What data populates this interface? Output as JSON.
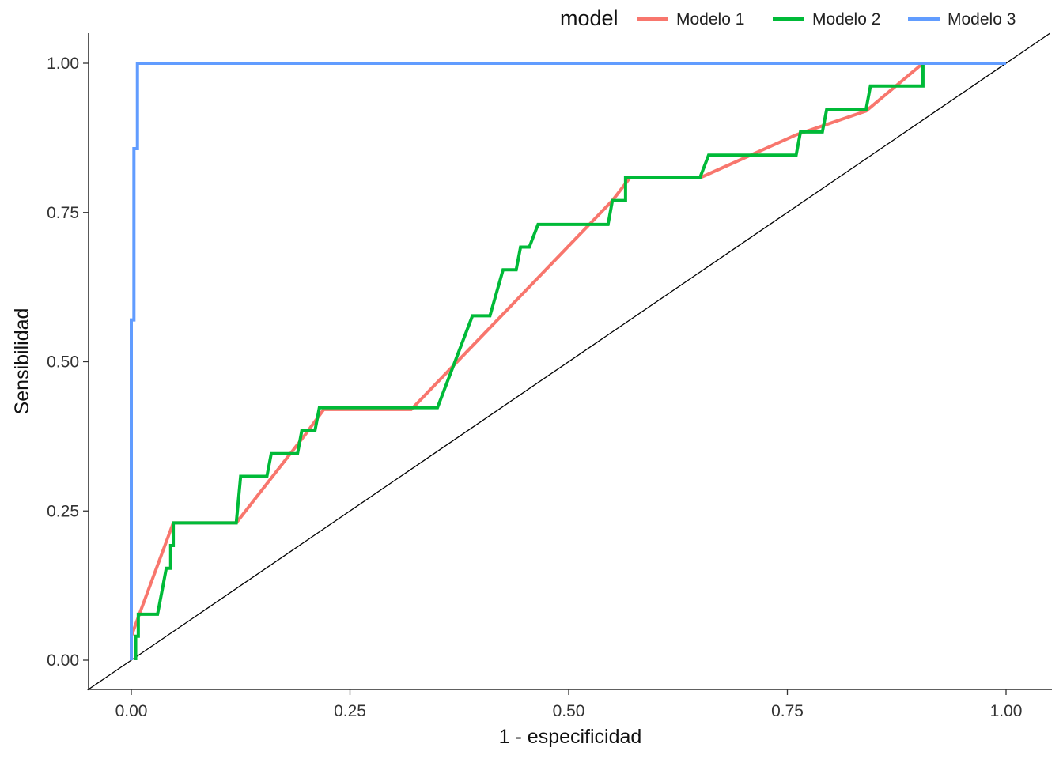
{
  "chart_data": {
    "type": "line",
    "title": "",
    "xlabel": "1 - especificidad",
    "ylabel": "Sensibilidad",
    "xlim": [
      -0.05,
      1.05
    ],
    "ylim": [
      -0.05,
      1.05
    ],
    "x_ticks": [
      0.0,
      0.25,
      0.5,
      0.75,
      1.0
    ],
    "x_tick_labels": [
      "0.00",
      "0.25",
      "0.50",
      "0.75",
      "1.00"
    ],
    "y_ticks": [
      0.0,
      0.25,
      0.5,
      0.75,
      1.0
    ],
    "y_tick_labels": [
      "0.00",
      "0.25",
      "0.50",
      "0.75",
      "1.00"
    ],
    "grid": false,
    "legend": {
      "title": "model",
      "position": "top-right"
    },
    "reference_line": {
      "x": [
        -0.05,
        1.05
      ],
      "y": [
        -0.05,
        1.05
      ],
      "color": "#000000"
    },
    "series": [
      {
        "name": "Modelo 1",
        "color": "#F8766D",
        "x": [
          0.0,
          0.0,
          0.01,
          0.048,
          0.12,
          0.2,
          0.22,
          0.32,
          0.55,
          0.57,
          0.65,
          0.76,
          0.84,
          0.905,
          0.905
        ],
        "y": [
          0.0,
          0.04,
          0.08,
          0.23,
          0.23,
          0.38,
          0.42,
          0.42,
          0.77,
          0.808,
          0.808,
          0.88,
          0.92,
          1.0,
          1.0
        ]
      },
      {
        "name": "Modelo 2",
        "color": "#00BA38",
        "x": [
          0.005,
          0.005,
          0.008,
          0.008,
          0.03,
          0.035,
          0.04,
          0.045,
          0.045,
          0.048,
          0.048,
          0.12,
          0.125,
          0.155,
          0.16,
          0.19,
          0.195,
          0.21,
          0.215,
          0.35,
          0.39,
          0.41,
          0.425,
          0.44,
          0.445,
          0.455,
          0.465,
          0.545,
          0.55,
          0.565,
          0.565,
          0.65,
          0.66,
          0.76,
          0.765,
          0.79,
          0.795,
          0.84,
          0.845,
          0.905,
          0.905
        ],
        "y": [
          0.0,
          0.04,
          0.04,
          0.077,
          0.077,
          0.115,
          0.154,
          0.154,
          0.192,
          0.192,
          0.23,
          0.23,
          0.308,
          0.308,
          0.346,
          0.346,
          0.385,
          0.385,
          0.423,
          0.423,
          0.577,
          0.577,
          0.654,
          0.654,
          0.692,
          0.692,
          0.73,
          0.73,
          0.77,
          0.77,
          0.808,
          0.808,
          0.846,
          0.846,
          0.885,
          0.885,
          0.923,
          0.923,
          0.962,
          0.962,
          1.0
        ]
      },
      {
        "name": "Modelo 3",
        "color": "#619CFF",
        "x": [
          0.0,
          0.0,
          0.003,
          0.003,
          0.007,
          0.007,
          1.0
        ],
        "y": [
          0.0,
          0.57,
          0.57,
          0.857,
          0.857,
          1.0,
          1.0
        ]
      }
    ]
  }
}
